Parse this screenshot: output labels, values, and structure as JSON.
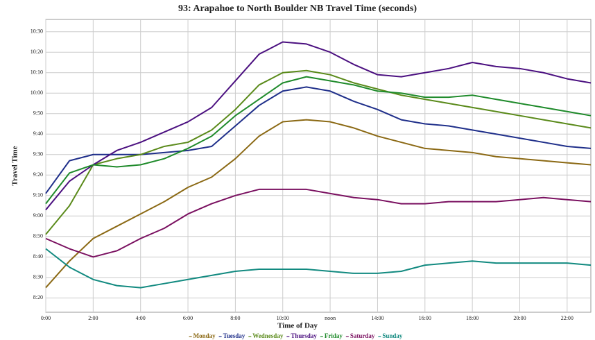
{
  "chart_data": {
    "type": "line",
    "title": "93: Arapahoe to North Boulder NB Travel Time (seconds)",
    "xlabel": "Time of Day",
    "ylabel": "Travel Time",
    "x": [
      0,
      1,
      2,
      3,
      4,
      5,
      6,
      7,
      8,
      9,
      10,
      11,
      12,
      13,
      14,
      15,
      16,
      17,
      18,
      19,
      20,
      21,
      22,
      23
    ],
    "xlim": [
      0,
      23
    ],
    "xticks": [
      {
        "value": 0,
        "label": "0:00"
      },
      {
        "value": 2,
        "label": "2:00"
      },
      {
        "value": 4,
        "label": "4:00"
      },
      {
        "value": 6,
        "label": "6:00"
      },
      {
        "value": 8,
        "label": "8:00"
      },
      {
        "value": 10,
        "label": "10:00"
      },
      {
        "value": 12,
        "label": "noon"
      },
      {
        "value": 14,
        "label": "14:00"
      },
      {
        "value": 16,
        "label": "16:00"
      },
      {
        "value": 18,
        "label": "18:00"
      },
      {
        "value": 20,
        "label": "20:00"
      },
      {
        "value": 22,
        "label": "22:00"
      }
    ],
    "ylim": [
      493,
      636
    ],
    "yticks": [
      {
        "value": 500,
        "label": "8:20"
      },
      {
        "value": 510,
        "label": "8:30"
      },
      {
        "value": 520,
        "label": "8:40"
      },
      {
        "value": 530,
        "label": "8:50"
      },
      {
        "value": 540,
        "label": "9:00"
      },
      {
        "value": 550,
        "label": "9:10"
      },
      {
        "value": 560,
        "label": "9:20"
      },
      {
        "value": 570,
        "label": "9:30"
      },
      {
        "value": 580,
        "label": "9:40"
      },
      {
        "value": 590,
        "label": "9:50"
      },
      {
        "value": 600,
        "label": "10:00"
      },
      {
        "value": 610,
        "label": "10:10"
      },
      {
        "value": 620,
        "label": "10:20"
      },
      {
        "value": 630,
        "label": "10:30"
      }
    ],
    "grid": true,
    "legend": "bottom",
    "series": [
      {
        "name": "Monday",
        "color": "#8b6914",
        "values": [
          505,
          518,
          529,
          535,
          541,
          547,
          554,
          559,
          568,
          579,
          586,
          587,
          586,
          583,
          579,
          576,
          573,
          572,
          571,
          569,
          568,
          567,
          566,
          565
        ]
      },
      {
        "name": "Tuesday",
        "color": "#1f2f8a",
        "values": [
          551,
          567,
          570,
          570,
          570,
          571,
          572,
          574,
          584,
          594,
          601,
          603,
          601,
          596,
          592,
          587,
          585,
          584,
          582,
          580,
          578,
          576,
          574,
          573
        ]
      },
      {
        "name": "Wednesday",
        "color": "#5a8a1a",
        "values": [
          531,
          545,
          565,
          568,
          570,
          574,
          576,
          582,
          592,
          604,
          610,
          611,
          609,
          605,
          602,
          599,
          597,
          595,
          593,
          591,
          589,
          587,
          585,
          583
        ]
      },
      {
        "name": "Thursday",
        "color": "#4b1080",
        "values": [
          543,
          557,
          565,
          572,
          576,
          581,
          586,
          593,
          606,
          619,
          625,
          624,
          620,
          614,
          609,
          608,
          610,
          612,
          615,
          613,
          612,
          610,
          607,
          605
        ]
      },
      {
        "name": "Friday",
        "color": "#1e8a2a",
        "values": [
          546,
          561,
          565,
          564,
          565,
          568,
          573,
          579,
          589,
          597,
          605,
          608,
          606,
          604,
          601,
          600,
          598,
          598,
          599,
          597,
          595,
          593,
          591,
          589
        ]
      },
      {
        "name": "Saturday",
        "color": "#7a1060",
        "values": [
          529,
          524,
          520,
          523,
          529,
          534,
          541,
          546,
          550,
          553,
          553,
          553,
          551,
          549,
          548,
          546,
          546,
          547,
          547,
          547,
          548,
          549,
          548,
          547
        ]
      },
      {
        "name": "Sunday",
        "color": "#128a80",
        "values": [
          524,
          515,
          509,
          506,
          505,
          507,
          509,
          511,
          513,
          514,
          514,
          514,
          513,
          512,
          512,
          513,
          516,
          517,
          518,
          517,
          517,
          517,
          517,
          516
        ]
      }
    ]
  }
}
